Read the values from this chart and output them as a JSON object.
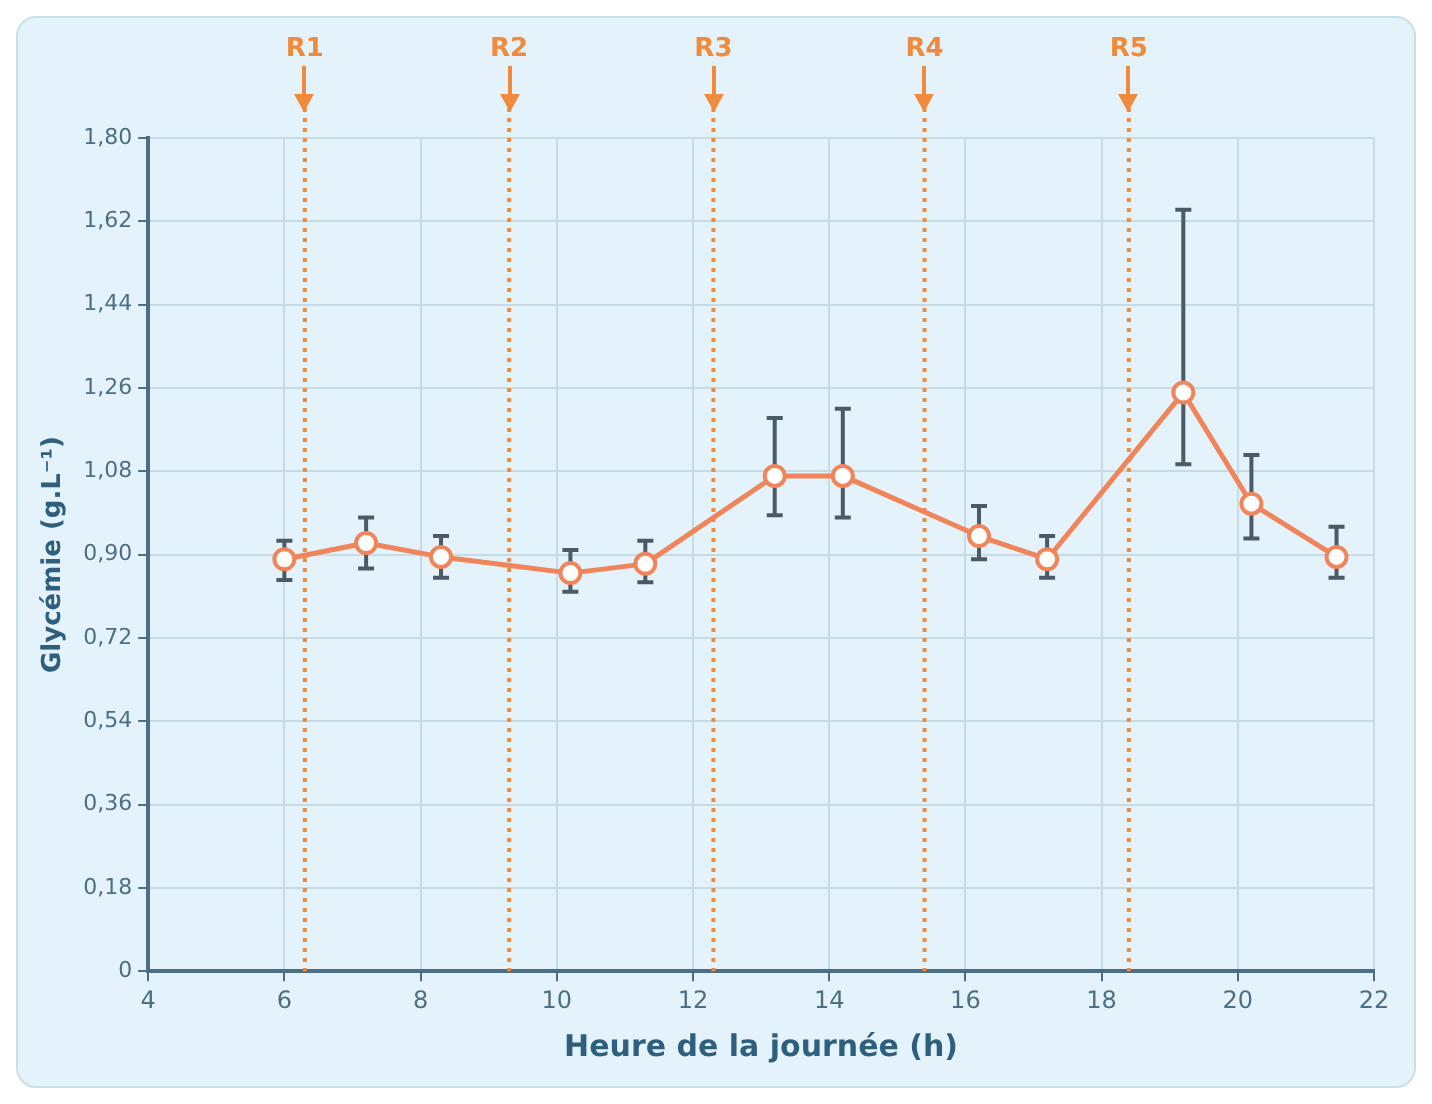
{
  "chart_data": {
    "type": "line",
    "xlabel": "Heure de la journée (h)",
    "ylabel": "Glycémie (g.L⁻¹)",
    "x": [
      6.0,
      7.2,
      8.3,
      10.2,
      11.3,
      13.2,
      14.2,
      16.2,
      17.2,
      19.2,
      20.2,
      21.45
    ],
    "series": [
      {
        "color": "#f0845a",
        "values": [
          0.89,
          0.925,
          0.895,
          0.86,
          0.88,
          1.07,
          1.07,
          0.94,
          0.89,
          1.25,
          1.01,
          0.895
        ],
        "errors": [
          [
            0.845,
            0.93
          ],
          [
            0.87,
            0.98
          ],
          [
            0.85,
            0.94
          ],
          [
            0.82,
            0.91
          ],
          [
            0.84,
            0.93
          ],
          [
            0.985,
            1.195
          ],
          [
            0.98,
            1.215
          ],
          [
            0.89,
            1.005
          ],
          [
            0.85,
            0.94
          ],
          [
            1.095,
            1.645
          ],
          [
            0.935,
            1.115
          ],
          [
            0.85,
            0.96
          ]
        ]
      }
    ],
    "xlim": [
      4,
      22
    ],
    "xticks": [
      4,
      6,
      8,
      10,
      12,
      14,
      16,
      18,
      20,
      22
    ],
    "ylim": [
      0,
      1.8
    ],
    "yticks": [
      0,
      {
        "value": 0.18,
        "label": "0,18"
      },
      {
        "value": 0.36,
        "label": "0,36"
      },
      {
        "value": 0.54,
        "label": "0,54"
      },
      {
        "value": 0.72,
        "label": "0,72"
      },
      {
        "value": 0.9,
        "label": "0,90"
      },
      {
        "value": 1.08,
        "label": "1,08"
      },
      {
        "value": 1.26,
        "label": "1,26"
      },
      {
        "value": 1.44,
        "label": "1,44"
      },
      {
        "value": 1.62,
        "label": "1,62"
      },
      {
        "value": 1.8,
        "label": "1,80"
      }
    ],
    "ref_lines": [
      {
        "axis": "x",
        "value": 6.3,
        "label": "R1",
        "color": "#f08a3c",
        "line_style": "dotted"
      },
      {
        "axis": "x",
        "value": 9.3,
        "label": "R2",
        "color": "#f08a3c",
        "line_style": "dotted"
      },
      {
        "axis": "x",
        "value": 12.3,
        "label": "R3",
        "color": "#f08a3c",
        "line_style": "dotted"
      },
      {
        "axis": "x",
        "value": 15.4,
        "label": "R4",
        "color": "#f08a3c",
        "line_style": "dotted"
      },
      {
        "axis": "x",
        "value": 18.4,
        "label": "R5",
        "color": "#f08a3c",
        "line_style": "dotted"
      }
    ],
    "grid": true,
    "legend": false,
    "marker": "circle",
    "line_style": "solid"
  }
}
